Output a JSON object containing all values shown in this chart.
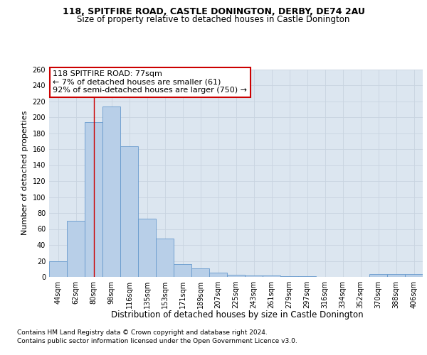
{
  "title_line1": "118, SPITFIRE ROAD, CASTLE DONINGTON, DERBY, DE74 2AU",
  "title_line2": "Size of property relative to detached houses in Castle Donington",
  "xlabel": "Distribution of detached houses by size in Castle Donington",
  "ylabel": "Number of detached properties",
  "categories": [
    "44sqm",
    "62sqm",
    "80sqm",
    "98sqm",
    "116sqm",
    "135sqm",
    "153sqm",
    "171sqm",
    "189sqm",
    "207sqm",
    "225sqm",
    "243sqm",
    "261sqm",
    "279sqm",
    "297sqm",
    "316sqm",
    "334sqm",
    "352sqm",
    "370sqm",
    "388sqm",
    "406sqm"
  ],
  "values": [
    20,
    70,
    194,
    213,
    164,
    73,
    48,
    16,
    11,
    5,
    3,
    2,
    2,
    1,
    1,
    0,
    0,
    0,
    4,
    4,
    4
  ],
  "bar_color": "#b8cfe8",
  "bar_edge_color": "#6699cc",
  "background_color": "#dce6f0",
  "vline_x": 2,
  "vline_color": "#cc0000",
  "annotation_text": "118 SPITFIRE ROAD: 77sqm\n← 7% of detached houses are smaller (61)\n92% of semi-detached houses are larger (750) →",
  "annotation_box_color": "#ffffff",
  "annotation_box_edge": "#cc0000",
  "footnote1": "Contains HM Land Registry data © Crown copyright and database right 2024.",
  "footnote2": "Contains public sector information licensed under the Open Government Licence v3.0.",
  "ylim": [
    0,
    260
  ],
  "yticks": [
    0,
    20,
    40,
    60,
    80,
    100,
    120,
    140,
    160,
    180,
    200,
    220,
    240,
    260
  ],
  "grid_color": "#c8d4e0",
  "title_fontsize": 9,
  "subtitle_fontsize": 8.5,
  "tick_fontsize": 7,
  "ylabel_fontsize": 8,
  "xlabel_fontsize": 8.5,
  "annotation_fontsize": 8,
  "footnote_fontsize": 6.5
}
